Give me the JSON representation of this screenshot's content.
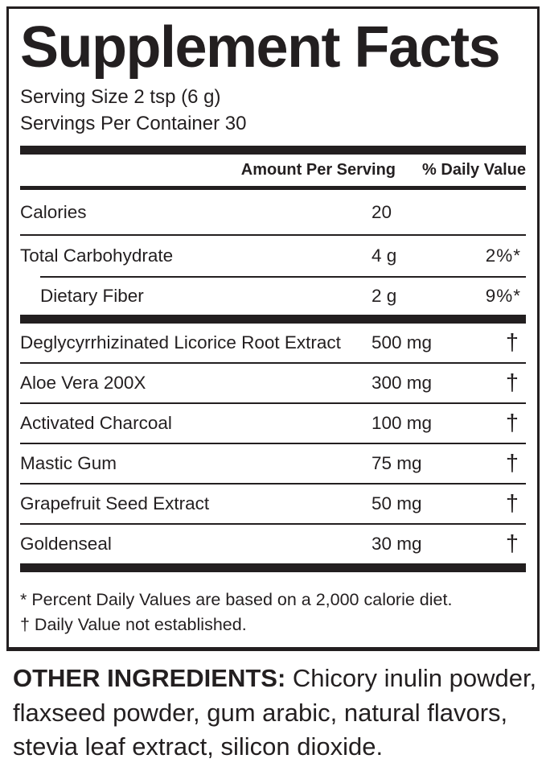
{
  "colors": {
    "ink": "#231f20",
    "background": "#ffffff"
  },
  "panel": {
    "title": "Supplement Facts",
    "serving_size": "Serving Size 2 tsp (6 g)",
    "servings_per_container": "Servings Per Container 30",
    "columns": {
      "amount": "Amount Per Serving",
      "daily_value": "% Daily Value"
    },
    "nutrients": [
      {
        "name": "Calories",
        "amount": "20",
        "dv": ""
      },
      {
        "name": "Total Carbohydrate",
        "amount": "4 g",
        "dv": "2%*"
      },
      {
        "name": "Dietary Fiber",
        "amount": "2 g",
        "dv": "9%*"
      }
    ],
    "ingredients": [
      {
        "name": "Deglycyrrhizinated Licorice Root Extract",
        "amount": "500 mg",
        "dv": "†"
      },
      {
        "name": "Aloe Vera 200X",
        "amount": "300 mg",
        "dv": "†"
      },
      {
        "name": "Activated Charcoal",
        "amount": "100 mg",
        "dv": "†"
      },
      {
        "name": "Mastic Gum",
        "amount": "75 mg",
        "dv": "†"
      },
      {
        "name": "Grapefruit Seed Extract",
        "amount": "50 mg",
        "dv": "†"
      },
      {
        "name": "Goldenseal",
        "amount": "30 mg",
        "dv": "†"
      }
    ],
    "footnotes": [
      "* Percent Daily Values are based on a 2,000 calorie diet.",
      "† Daily Value not established."
    ]
  },
  "other_ingredients": {
    "label": "OTHER INGREDIENTS:",
    "text": " Chicory inulin powder, flaxseed powder, gum arabic, natural flavors, stevia leaf extract, silicon dioxide."
  }
}
